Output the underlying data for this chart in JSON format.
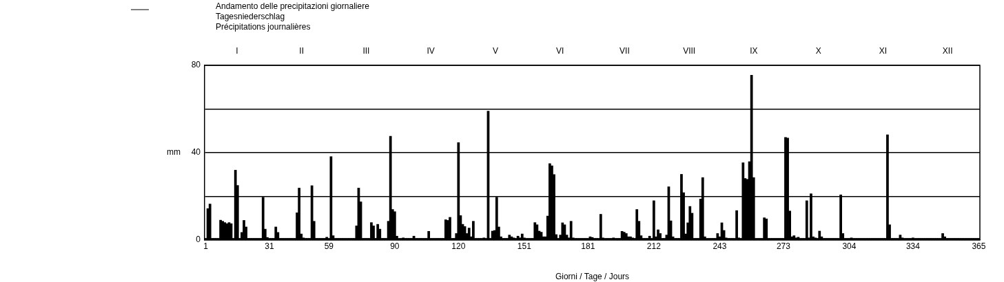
{
  "chart_data": {
    "type": "bar",
    "xlabel": "Giorni / Tage / Jours",
    "ylabel": "mm",
    "x": [
      1,
      2,
      3,
      4,
      5,
      6,
      7,
      8,
      9,
      10,
      11,
      12,
      13,
      14,
      15,
      16,
      17,
      18,
      19,
      20,
      21,
      22,
      23,
      24,
      25,
      26,
      27,
      28,
      29,
      30,
      31,
      32,
      33,
      34,
      35,
      36,
      37,
      38,
      39,
      40,
      41,
      42,
      43,
      44,
      45,
      46,
      47,
      48,
      49,
      50,
      51,
      52,
      53,
      54,
      55,
      56,
      57,
      58,
      59,
      60,
      61,
      62,
      63,
      64,
      65,
      66,
      67,
      68,
      69,
      70,
      71,
      72,
      73,
      74,
      75,
      76,
      77,
      78,
      79,
      80,
      81,
      82,
      83,
      84,
      85,
      86,
      87,
      88,
      89,
      90,
      91,
      92,
      93,
      94,
      95,
      96,
      97,
      98,
      99,
      100,
      101,
      102,
      103,
      104,
      105,
      106,
      107,
      108,
      109,
      110,
      111,
      112,
      113,
      114,
      115,
      116,
      117,
      118,
      119,
      120,
      121,
      122,
      123,
      124,
      125,
      126,
      127,
      128,
      129,
      130,
      131,
      132,
      133,
      134,
      135,
      136,
      137,
      138,
      139,
      140,
      141,
      142,
      143,
      144,
      145,
      146,
      147,
      148,
      149,
      150,
      151,
      152,
      153,
      154,
      155,
      156,
      157,
      158,
      159,
      160,
      161,
      162,
      163,
      164,
      165,
      166,
      167,
      168,
      169,
      170,
      171,
      172,
      173,
      174,
      175,
      176,
      177,
      178,
      179,
      180,
      181,
      182,
      183,
      184,
      185,
      186,
      187,
      188,
      189,
      190,
      191,
      192,
      193,
      194,
      195,
      196,
      197,
      198,
      199,
      200,
      201,
      202,
      203,
      204,
      205,
      206,
      207,
      208,
      209,
      210,
      211,
      212,
      213,
      214,
      215,
      216,
      217,
      218,
      219,
      220,
      221,
      222,
      223,
      224,
      225,
      226,
      227,
      228,
      229,
      230,
      231,
      232,
      233,
      234,
      235,
      236,
      237,
      238,
      239,
      240,
      241,
      242,
      243,
      244,
      245,
      246,
      247,
      248,
      249,
      250,
      251,
      252,
      253,
      254,
      255,
      256,
      257,
      258,
      259,
      260,
      261,
      262,
      263,
      264,
      265,
      266,
      267,
      268,
      269,
      270,
      271,
      272,
      273,
      274,
      275,
      276,
      277,
      278,
      279,
      280,
      281,
      282,
      283,
      284,
      285,
      286,
      287,
      288,
      289,
      290,
      291,
      292,
      293,
      294,
      295,
      296,
      297,
      298,
      299,
      300,
      301,
      302,
      303,
      304,
      305,
      306,
      307,
      308,
      309,
      310,
      311,
      312,
      313,
      314,
      315,
      316,
      317,
      318,
      319,
      320,
      321,
      322,
      323,
      324,
      325,
      326,
      327,
      328,
      329,
      330,
      331,
      332,
      333,
      334,
      335,
      336,
      337,
      338,
      339,
      340,
      341,
      342,
      343,
      344,
      345,
      346,
      347,
      348,
      349,
      350,
      351,
      352,
      353,
      354,
      355,
      356,
      357,
      358,
      359,
      360,
      361,
      362,
      363,
      364,
      365
    ],
    "series": [
      {
        "name": "Andamento delle precipitazioni giornaliere\nTagesniederschlag\nPrécipitations journalières",
        "color": "#000000",
        "values": [
          0.8,
          14.4,
          16.5,
          0.8,
          0.8,
          0.8,
          0.8,
          9.1,
          8.6,
          8,
          7.5,
          8,
          7.5,
          0.8,
          32,
          25,
          0.8,
          3.5,
          9,
          6,
          0.8,
          0.8,
          0.8,
          0.8,
          0.8,
          0.8,
          0.8,
          19.6,
          5,
          1.2,
          0.8,
          0.8,
          0.8,
          6,
          3.5,
          0.8,
          0.8,
          0.8,
          0.8,
          0.8,
          0.8,
          0.8,
          0.8,
          12.5,
          23.8,
          2.8,
          1,
          0.8,
          0.8,
          0.8,
          24.9,
          8.6,
          0.8,
          0.8,
          0.8,
          0.8,
          0.8,
          1.3,
          0.8,
          38.2,
          2,
          0.8,
          0.8,
          0.8,
          0.8,
          0.8,
          0.8,
          0.8,
          0.8,
          0.8,
          0.8,
          6.5,
          23.8,
          17.5,
          0.8,
          0.8,
          0.8,
          0.8,
          8,
          6.5,
          0.8,
          7.2,
          5,
          0.8,
          0.8,
          0.8,
          8.6,
          47.5,
          14,
          13,
          1.8,
          0.8,
          0.8,
          1,
          0.8,
          0.8,
          0.8,
          0.8,
          1.8,
          0.8,
          0.8,
          0.8,
          0.8,
          0.8,
          0.8,
          4,
          0.8,
          0.8,
          0.8,
          0.8,
          0.8,
          0.8,
          0.8,
          9.3,
          9,
          10.4,
          0.8,
          0.8,
          3,
          44.6,
          11.2,
          7.2,
          6.2,
          3,
          5.5,
          1.5,
          8.6,
          0.8,
          0.8,
          0.8,
          0.8,
          1,
          0.8,
          59,
          0.8,
          4.1,
          4.4,
          19.6,
          6,
          1.5,
          0.8,
          0.8,
          0.8,
          2.3,
          1.5,
          1,
          0.8,
          1.8,
          1,
          2.8,
          1,
          0.8,
          0.8,
          0.8,
          0.8,
          8,
          7,
          4.1,
          3.6,
          1.5,
          1.5,
          11,
          35,
          34,
          30,
          2.5,
          0.8,
          2.3,
          7.9,
          7,
          2.3,
          1,
          8.6,
          1,
          0.8,
          0.8,
          0.8,
          0.8,
          0.8,
          0.8,
          0.8,
          1.5,
          1.2,
          0.8,
          0.8,
          0.8,
          11.8,
          1,
          0.8,
          0.8,
          0.8,
          0.8,
          1,
          0.8,
          0.8,
          0.8,
          4,
          3.6,
          3,
          1.5,
          1.5,
          1,
          0.8,
          14,
          8.6,
          2,
          0.8,
          0.8,
          0.8,
          1.8,
          0.8,
          18,
          1.5,
          4.7,
          3,
          0.8,
          0.8,
          2.3,
          24.4,
          8.8,
          1.5,
          0.8,
          0.8,
          0.8,
          30.1,
          21.7,
          2.8,
          7.9,
          15.4,
          12.3,
          0.8,
          0.8,
          0.8,
          18.8,
          28.6,
          1.5,
          0.8,
          0.8,
          0.8,
          0.8,
          0.8,
          3,
          1.5,
          7.9,
          4.4,
          1,
          0.8,
          0.8,
          0.8,
          0.8,
          13.5,
          1,
          0.8,
          35.4,
          28.2,
          27.8,
          35.9,
          75.5,
          28.6,
          0.8,
          0.8,
          0.8,
          0.8,
          10.2,
          9.7,
          0.8,
          0.8,
          0.8,
          0.8,
          0.8,
          0.8,
          0.8,
          0.8,
          47,
          46.7,
          13.3,
          1.5,
          2,
          1,
          1.3,
          0.8,
          0.8,
          0.8,
          18,
          1,
          21.2,
          1.5,
          1,
          0.8,
          4.1,
          1.5,
          0.8,
          0.8,
          0.8,
          0.8,
          0.8,
          0.8,
          0.8,
          0.8,
          20.7,
          3,
          0.8,
          0.8,
          0.8,
          1,
          0.8,
          0.8,
          0.8,
          0.8,
          0.8,
          0.8,
          0.8,
          0.8,
          0.8,
          0.8,
          0.8,
          0.8,
          0.8,
          0.8,
          0.8,
          0.8,
          48.2,
          7,
          0.8,
          0.8,
          0.8,
          0.8,
          2.3,
          1,
          0.8,
          0.8,
          0.8,
          0.8,
          1,
          0.8,
          0.8,
          0.8,
          0.8,
          0.8,
          0.8,
          0.8,
          0.8,
          0.8,
          0.8,
          0.8,
          0.8,
          0.8,
          3,
          1.5,
          0.8,
          0.8,
          0.8,
          0.8,
          0.8,
          0.8,
          0.8,
          0.8,
          0.8,
          0.8,
          0.8,
          0.8,
          0.8,
          0.8,
          0.8,
          0.8
        ]
      }
    ],
    "xlim": [
      0.5,
      365.5
    ],
    "xticks": [
      1,
      31,
      59,
      90,
      120,
      151,
      181,
      212,
      243,
      273,
      304,
      334,
      365
    ],
    "annotations": [
      "I",
      "II",
      "III",
      "IV",
      "V",
      "VI",
      "VII",
      "VIII",
      "IX",
      "X",
      "XI",
      "XII"
    ],
    "ylim": [
      0,
      80
    ],
    "yticks": [
      0,
      {
        "value": 20,
        "label": null
      },
      40,
      {
        "value": 60,
        "label": null
      },
      80
    ],
    "grid": "y",
    "legend": "top"
  }
}
